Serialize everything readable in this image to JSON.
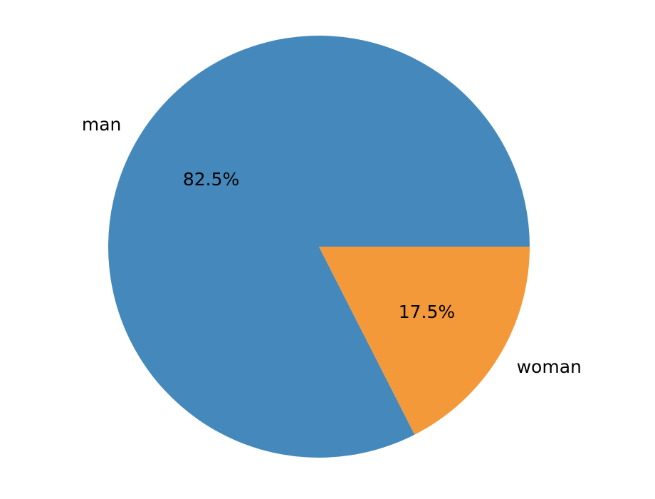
{
  "chart_data": {
    "type": "pie",
    "categories": [
      "man",
      "woman"
    ],
    "values": [
      82.5,
      17.5
    ],
    "value_labels": [
      "82.5%",
      "17.5%"
    ],
    "colors": [
      "#4589bc",
      "#f39939"
    ]
  }
}
